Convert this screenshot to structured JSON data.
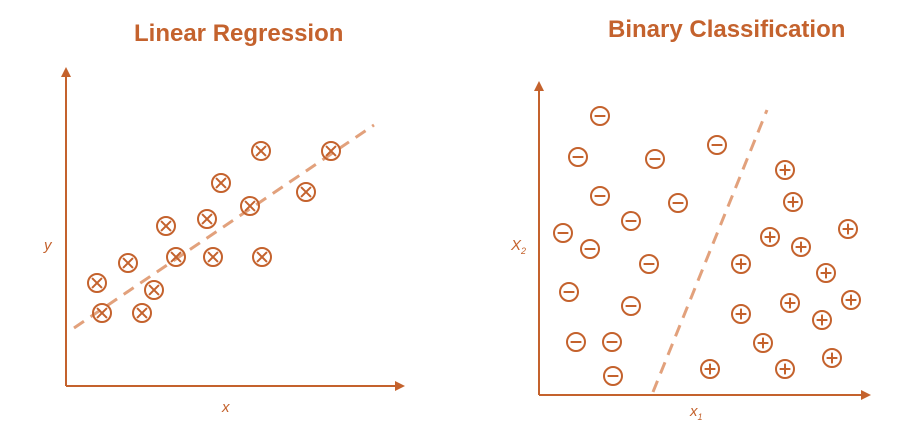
{
  "colors": {
    "accent": "#c4622d",
    "background": "#ffffff"
  },
  "left_panel": {
    "title": "Linear Regression",
    "xlabel": "x",
    "ylabel": "y",
    "marker_icon": "circled-times-icon"
  },
  "right_panel": {
    "title": "Binary Classification",
    "xlabel": "x",
    "xlabel_sub": "1",
    "ylabel": "X",
    "ylabel_sub": "2",
    "negative_icon": "circled-minus-icon",
    "positive_icon": "circled-plus-icon"
  }
}
